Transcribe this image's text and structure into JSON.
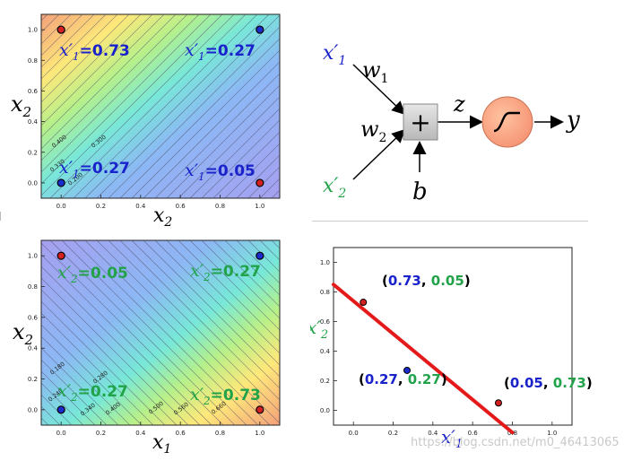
{
  "chart_data": [
    {
      "type": "heatmap",
      "ticks_x": [
        "0.0",
        "0.2",
        "0.4",
        "0.6",
        "0.8",
        "1.0"
      ],
      "ticks_y": [
        "0.0",
        "0.2",
        "0.4",
        "0.6",
        "0.8",
        "1.0"
      ],
      "xlabel": {
        "base": "x",
        "sub": "2"
      },
      "ylabel": {
        "base": "x",
        "sub": "2"
      },
      "contour_labels": [
        "0.400",
        "0.300",
        "0.330",
        "0.200"
      ],
      "points": [
        {
          "x": 0,
          "y": 1,
          "color": "#d42020"
        },
        {
          "x": 1,
          "y": 1,
          "color": "#1a2ccc"
        },
        {
          "x": 0,
          "y": 0,
          "color": "#1a2ccc"
        },
        {
          "x": 1,
          "y": 0,
          "color": "#d42020"
        }
      ],
      "annotations": [
        {
          "base": "x′",
          "sub": "1",
          "val": "=0.73",
          "color": "#1a22cc"
        },
        {
          "base": "x′",
          "sub": "1",
          "val": "=0.27",
          "color": "#1a22cc"
        },
        {
          "base": "x′",
          "sub": "1",
          "val": "=0.27",
          "color": "#1a22cc"
        },
        {
          "base": "x′",
          "sub": "1",
          "val": "=0.05",
          "color": "#1a22cc"
        }
      ]
    },
    {
      "type": "heatmap",
      "ticks_x": [
        "0.0",
        "0.2",
        "0.4",
        "0.6",
        "0.8",
        "1.0"
      ],
      "ticks_y": [
        "0.0",
        "0.2",
        "0.4",
        "0.6",
        "0.8",
        "1.0"
      ],
      "xlabel": {
        "base": "x",
        "sub": "1"
      },
      "ylabel": {
        "base": "x",
        "sub": "2"
      },
      "contour_labels": [
        "0.180",
        "0.280",
        "0.240",
        "0.340",
        "0.400",
        "0.500",
        "0.560",
        "0.660"
      ],
      "points": [
        {
          "x": 0,
          "y": 1,
          "color": "#d42020"
        },
        {
          "x": 1,
          "y": 1,
          "color": "#1a2ccc"
        },
        {
          "x": 0,
          "y": 0,
          "color": "#1a2ccc"
        },
        {
          "x": 1,
          "y": 0,
          "color": "#d42020"
        }
      ],
      "annotations": [
        {
          "base": "x′",
          "sub": "2",
          "val": "=0.05",
          "color": "#22a34a"
        },
        {
          "base": "x′",
          "sub": "2",
          "val": "=0.27",
          "color": "#22a34a"
        },
        {
          "base": "x′",
          "sub": "2",
          "val": "=0.27",
          "color": "#22a34a"
        },
        {
          "base": "x′",
          "sub": "2",
          "val": "=0.73",
          "color": "#22a34a"
        }
      ]
    },
    {
      "type": "scatter",
      "xlim": [
        -0.1,
        1.1
      ],
      "ylim": [
        -0.1,
        1.1
      ],
      "ticks_x": [
        "0.0",
        "0.2",
        "0.4",
        "0.6",
        "0.8",
        "1.0"
      ],
      "ticks_y": [
        "0.0",
        "0.2",
        "0.4",
        "0.6",
        "0.8",
        "1.0"
      ],
      "xlabel": {
        "base": "x′",
        "sub": "1"
      },
      "ylabel": {
        "base": "x′",
        "sub": "2"
      },
      "points": [
        {
          "x": 0.05,
          "y": 0.73,
          "color": "#d42020",
          "a": "0.73",
          "b": "0.05"
        },
        {
          "x": 0.27,
          "y": 0.27,
          "color": "#1a2ccc",
          "a": "0.27",
          "b": "0.27"
        },
        {
          "x": 0.73,
          "y": 0.05,
          "color": "#d42020",
          "a": "0.05",
          "b": "0.73"
        }
      ],
      "boundary": {
        "x": [
          -0.1,
          0.8
        ],
        "y": [
          0.85,
          -0.15
        ],
        "color": "#e41a1a"
      }
    }
  ],
  "neuron": {
    "input1": {
      "base": "x′",
      "sub": "1",
      "color": "#1a22cc"
    },
    "input2": {
      "base": "x′",
      "sub": "2",
      "color": "#22a34a"
    },
    "w1": {
      "base": "w",
      "sub": "1"
    },
    "w2": {
      "base": "w",
      "sub": "2"
    },
    "sum_symbol": "+",
    "bias": "b",
    "z": "z",
    "output": "y"
  },
  "watermark": "https://blog.csdn.net/m0_46413065"
}
